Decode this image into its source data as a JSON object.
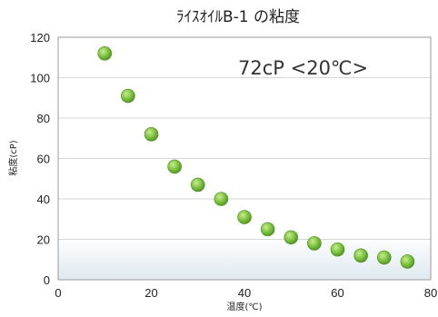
{
  "chart_data": {
    "type": "scatter",
    "title": "ﾗｲｽｵｲﾙB-1 の粘度",
    "annotation": "72cP <20℃>",
    "xlabel": "温度(℃)",
    "ylabel": "粘度(cP)",
    "xlim": [
      0,
      80
    ],
    "ylim": [
      0,
      120
    ],
    "xticks": [
      0,
      20,
      40,
      60,
      80
    ],
    "yticks": [
      0,
      20,
      40,
      60,
      80,
      100,
      120
    ],
    "grid": true,
    "colors": {
      "point": "#7dc142",
      "point_edge": "#4e8f22",
      "plot_bg_bottom": "#dfe9f0"
    },
    "series": [
      {
        "x": [
          10,
          15,
          20,
          25,
          30,
          35,
          40,
          45,
          50,
          55,
          60,
          65,
          70,
          75
        ],
        "y": [
          112,
          91,
          72,
          56,
          47,
          40,
          31,
          25,
          21,
          18,
          15,
          12,
          11,
          9
        ]
      }
    ]
  }
}
